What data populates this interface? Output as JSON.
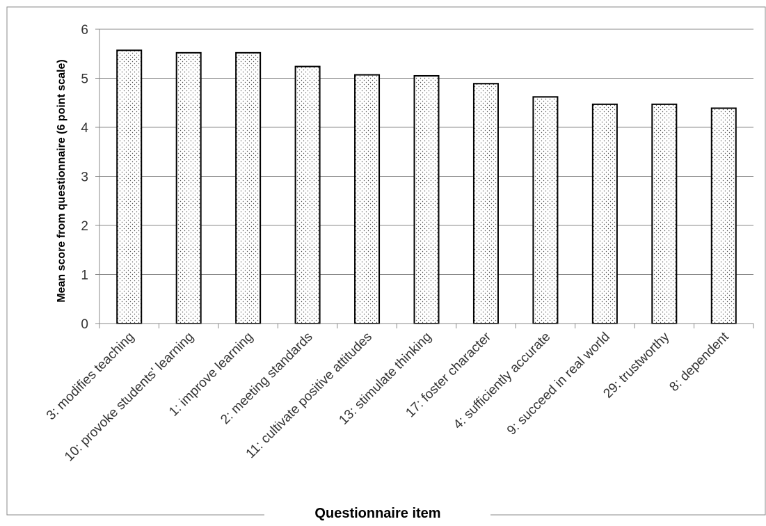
{
  "chart_data": {
    "type": "bar",
    "categories": [
      "3: modifies teaching",
      "10: provoke students' learning",
      "1: improve learning",
      "2: meeting standards",
      "11: cultivate positive attitudes",
      "13: stimulate thinking",
      "17: foster character",
      "4: sufficiently accurate",
      "9: succeed in real world",
      "29: trustworthy",
      "8: dependent"
    ],
    "values": [
      5.57,
      5.52,
      5.52,
      5.24,
      5.07,
      5.05,
      4.89,
      4.62,
      4.47,
      4.47,
      4.39
    ],
    "xlabel": "Questionnaire item",
    "ylabel": "Mean score from questionnaire (6 point scale)",
    "ylim": [
      0,
      6
    ],
    "yticks": [
      "0",
      "1",
      "2",
      "3",
      "4",
      "5",
      "6"
    ],
    "grid": true,
    "legend": "none",
    "colors": {
      "bar_fill": "#ffffff",
      "bar_stroke": "#000000",
      "dots": "#555555",
      "grid": "#888888"
    }
  }
}
